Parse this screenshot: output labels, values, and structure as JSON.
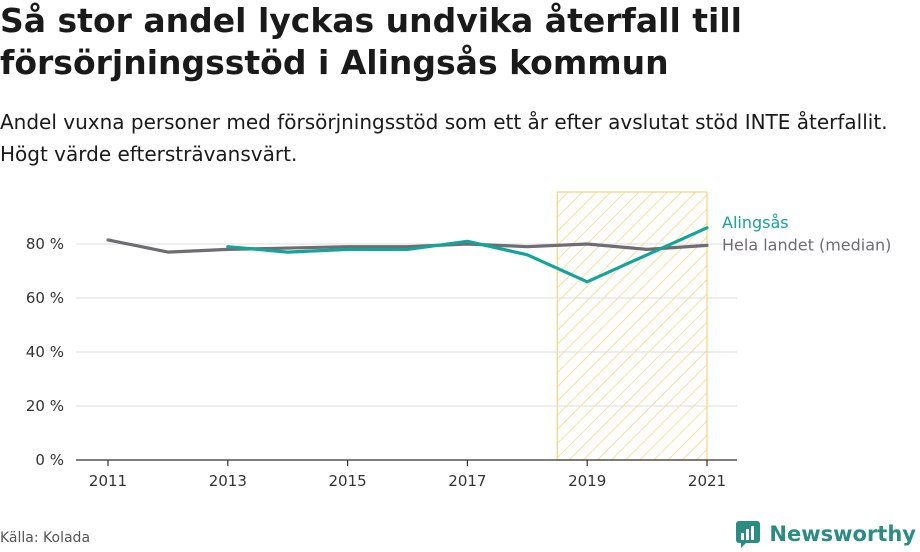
{
  "title": "Så stor andel lyckas undvika återfall till försörjningsstöd i Alingsås kommun",
  "subtitle": "Andel vuxna personer med försörjningsstöd som ett år efter avslutat stöd INTE återfallit. Högt värde eftersträvansvärt.",
  "source": "Källa: Kolada",
  "brand": "Newsworthy",
  "colors": {
    "alingsas": "#13a49a",
    "median": "#6f6c72",
    "highlight_stroke": "#f6d27a",
    "grid": "#dcdcdc",
    "brand": "#2a8c82"
  },
  "chart_data": {
    "type": "line",
    "x_ticks": [
      "2011",
      "2013",
      "2015",
      "2017",
      "2019",
      "2021"
    ],
    "y_ticks": [
      "0 %",
      "20 %",
      "40 %",
      "60 %",
      "80 %"
    ],
    "ylim": [
      0,
      100
    ],
    "xlim": [
      2011,
      2021
    ],
    "highlight_range": [
      2018.5,
      2021
    ],
    "grid": true,
    "series": [
      {
        "name": "Hela landet (median)",
        "x": [
          2011,
          2012,
          2013,
          2014,
          2015,
          2016,
          2017,
          2018,
          2019,
          2020,
          2021
        ],
        "values": [
          81.5,
          77,
          78,
          78.5,
          79,
          79,
          80,
          79,
          80,
          78,
          79.5
        ]
      },
      {
        "name": "Alingsås",
        "x": [
          2013,
          2014,
          2015,
          2016,
          2017,
          2018,
          2019,
          2020,
          2021
        ],
        "values": [
          79,
          77,
          78,
          78,
          81,
          76,
          66,
          76,
          86
        ]
      }
    ]
  }
}
